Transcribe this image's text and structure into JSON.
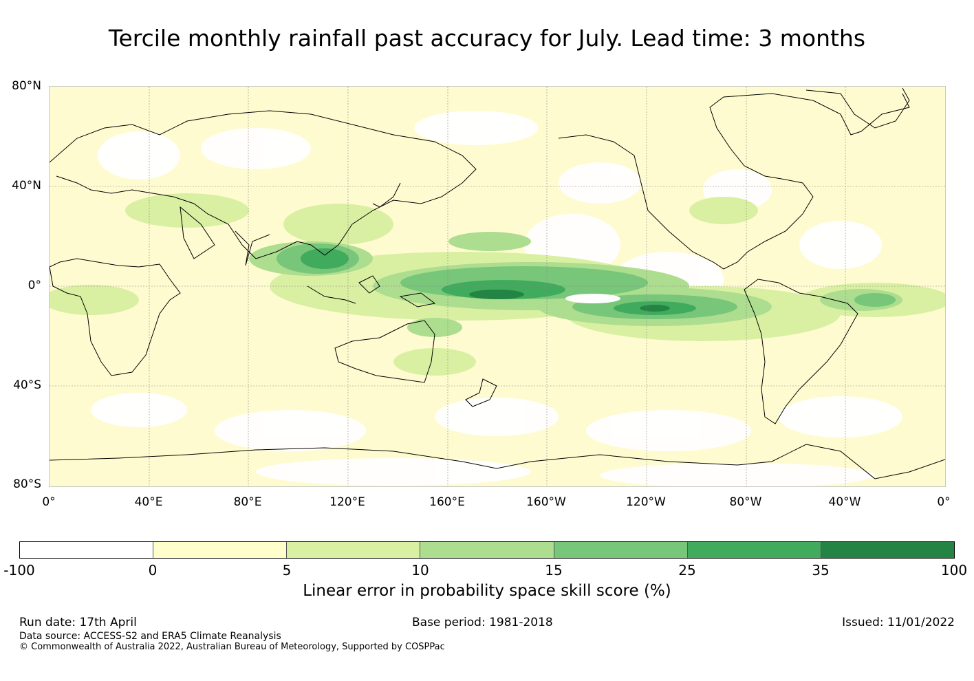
{
  "title": "Tercile monthly rainfall past accuracy for July. Lead time: 3 months",
  "map": {
    "lat_labels": [
      "80°N",
      "40°N",
      "0°",
      "40°S",
      "80°S"
    ],
    "lon_labels": [
      "0°",
      "40°E",
      "80°E",
      "120°E",
      "160°E",
      "160°W",
      "120°W",
      "80°W",
      "40°W",
      "0°"
    ]
  },
  "colorbar": {
    "ticks": [
      "-100",
      "0",
      "5",
      "10",
      "15",
      "25",
      "35",
      "100"
    ],
    "colors": [
      "#ffffff",
      "#ffffcc",
      "#d9f0a3",
      "#addd8e",
      "#78c679",
      "#41ab5d",
      "#238443"
    ],
    "label": "Linear error in probability space skill score (%)"
  },
  "footer": {
    "run_date": "Run date: 17th April",
    "base_period": "Base period: 1981-2018",
    "issued": "Issued: 11/01/2022",
    "data_source": "Data source: ACCESS-S2 and ERA5 Climate Reanalysis",
    "copyright": "© Commonwealth of Australia 2022, Australian Bureau of Meteorology, Supported by COSPPac"
  }
}
